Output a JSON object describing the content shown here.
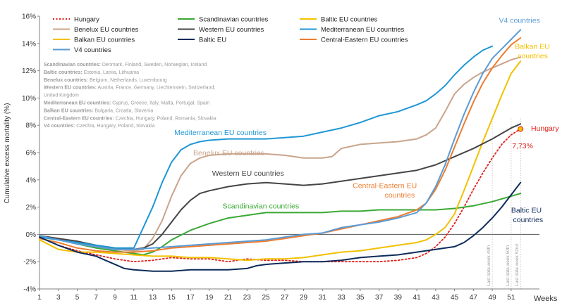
{
  "chart_data": {
    "type": "line",
    "title": "",
    "xlabel": "Weeks",
    "ylabel": "Cumulative excess mortality (%)",
    "xlim": [
      1,
      54
    ],
    "ylim": [
      -4,
      16
    ],
    "x_ticks": [
      1,
      3,
      5,
      7,
      9,
      11,
      13,
      15,
      17,
      19,
      21,
      23,
      25,
      27,
      29,
      31,
      33,
      35,
      37,
      39,
      41,
      43,
      45,
      47,
      49,
      51
    ],
    "y_ticks": [
      {
        "value": -4,
        "label": "-4%"
      },
      {
        "value": -2,
        "label": "-2%"
      },
      {
        "value": 0,
        "label": "0%"
      },
      {
        "value": 2,
        "label": "2%"
      },
      {
        "value": 4,
        "label": "4%"
      },
      {
        "value": 6,
        "label": "6%"
      },
      {
        "value": 8,
        "label": "8%"
      },
      {
        "value": 10,
        "label": "10%"
      },
      {
        "value": 12,
        "label": "12%"
      },
      {
        "value": 14,
        "label": "14%"
      },
      {
        "value": 16,
        "label": "16%"
      }
    ],
    "zero_line": 0,
    "series": [
      {
        "name": "Hungary",
        "color": "#e0201b",
        "dash": "dotted",
        "x": [
          1,
          3,
          5,
          7,
          9,
          11,
          13,
          15,
          17,
          19,
          21,
          23,
          25,
          27,
          29,
          31,
          33,
          35,
          37,
          39,
          41,
          42,
          43,
          44,
          45,
          46,
          47,
          48,
          49,
          50,
          51,
          52
        ],
        "values": [
          -0.2,
          -0.8,
          -1.2,
          -1.5,
          -1.8,
          -2.0,
          -1.9,
          -1.7,
          -1.8,
          -1.8,
          -2.0,
          -1.8,
          -1.9,
          -1.9,
          -2.0,
          -2.0,
          -2.0,
          -2.0,
          -2.0,
          -1.9,
          -1.7,
          -1.4,
          -0.9,
          -0.2,
          0.8,
          2.0,
          3.3,
          4.5,
          5.6,
          6.6,
          7.3,
          7.73
        ]
      },
      {
        "name": "Scandinavian countries",
        "color": "#3aa935",
        "dash": "solid",
        "x": [
          1,
          3,
          5,
          7,
          9,
          11,
          12,
          13,
          14,
          15,
          17,
          19,
          21,
          23,
          25,
          27,
          29,
          31,
          33,
          35,
          37,
          39,
          41,
          43,
          45,
          47,
          49,
          51,
          52
        ],
        "values": [
          -0.1,
          -0.4,
          -0.7,
          -1.0,
          -1.2,
          -1.4,
          -1.5,
          -1.3,
          -0.9,
          -0.4,
          0.3,
          0.8,
          1.2,
          1.4,
          1.6,
          1.6,
          1.6,
          1.6,
          1.7,
          1.7,
          1.8,
          1.8,
          1.8,
          1.8,
          1.9,
          2.1,
          2.4,
          2.8,
          3.0
        ]
      },
      {
        "name": "Baltic EU countries",
        "color": "#f2c100",
        "dash": "solid",
        "x": [
          1,
          3,
          5,
          7,
          9,
          11,
          13,
          15,
          17,
          19,
          21,
          23,
          25,
          27,
          29,
          31,
          33,
          35,
          37,
          39,
          41,
          42,
          43,
          44,
          45,
          46,
          47,
          48,
          49,
          50,
          51,
          52
        ],
        "values": [
          -0.4,
          -1.1,
          -1.3,
          -1.3,
          -1.4,
          -1.5,
          -1.6,
          -1.6,
          -1.7,
          -1.7,
          -1.8,
          -1.9,
          -1.8,
          -1.8,
          -1.7,
          -1.5,
          -1.3,
          -1.2,
          -1.0,
          -0.8,
          -0.6,
          -0.4,
          0.0,
          0.5,
          1.5,
          3.2,
          5.0,
          6.8,
          8.5,
          10.2,
          11.8,
          12.7
        ]
      },
      {
        "name": "Benelux EU countries",
        "color": "#c9a48b",
        "dash": "solid",
        "x": [
          1,
          3,
          5,
          7,
          9,
          11,
          12,
          13,
          14,
          15,
          16,
          17,
          18,
          19,
          21,
          23,
          25,
          27,
          29,
          31,
          32,
          33,
          35,
          37,
          39,
          41,
          42,
          43,
          44,
          45,
          46,
          47,
          48,
          49,
          50,
          51,
          52
        ],
        "values": [
          -0.1,
          -0.3,
          -0.6,
          -0.9,
          -1.1,
          -1.2,
          -1.1,
          -0.3,
          1.0,
          2.8,
          4.3,
          5.2,
          5.6,
          5.8,
          5.9,
          5.9,
          5.9,
          5.8,
          5.6,
          5.6,
          5.7,
          6.3,
          6.6,
          6.7,
          6.8,
          7.0,
          7.3,
          7.8,
          9.0,
          10.3,
          11.0,
          11.5,
          11.9,
          12.2,
          12.5,
          12.8,
          13.0
        ]
      },
      {
        "name": "Western EU countries",
        "color": "#454545",
        "dash": "solid",
        "x": [
          1,
          3,
          5,
          7,
          9,
          11,
          12,
          13,
          14,
          15,
          16,
          17,
          18,
          19,
          21,
          23,
          25,
          27,
          29,
          31,
          33,
          35,
          37,
          39,
          41,
          43,
          45,
          47,
          49,
          51,
          52
        ],
        "values": [
          -0.1,
          -0.3,
          -0.5,
          -0.8,
          -1.0,
          -1.1,
          -1.0,
          -0.7,
          0.0,
          0.9,
          1.8,
          2.5,
          3.0,
          3.2,
          3.5,
          3.7,
          3.8,
          3.7,
          3.6,
          3.7,
          3.9,
          4.1,
          4.3,
          4.5,
          4.7,
          5.1,
          5.7,
          6.3,
          7.0,
          7.8,
          8.1
        ]
      },
      {
        "name": "Mediterranean EU countries",
        "color": "#1f97d4",
        "dash": "solid",
        "x": [
          1,
          3,
          5,
          7,
          9,
          10,
          11,
          12,
          13,
          14,
          15,
          16,
          17,
          18,
          19,
          21,
          23,
          25,
          27,
          29,
          31,
          33,
          35,
          37,
          39,
          41,
          42,
          43,
          44,
          45,
          46,
          47,
          48,
          49
        ],
        "values": [
          -0.2,
          -0.4,
          -0.6,
          -0.8,
          -1.0,
          -1.0,
          -1.0,
          0.5,
          2.0,
          3.8,
          5.3,
          6.2,
          6.6,
          6.8,
          6.9,
          7.0,
          7.0,
          7.0,
          7.1,
          7.2,
          7.5,
          7.8,
          8.2,
          8.7,
          9.0,
          9.5,
          9.8,
          10.3,
          10.9,
          11.7,
          12.4,
          13.0,
          13.5,
          13.8
        ]
      },
      {
        "name": "Balkan EU countries",
        "color": "#f5c000",
        "dash": "solid",
        "x": [],
        "values": []
      },
      {
        "name": "Central-Eastern EU countries",
        "color": "#ed7d31",
        "dash": "solid",
        "x": [
          1,
          3,
          5,
          7,
          9,
          11,
          13,
          15,
          17,
          19,
          21,
          23,
          25,
          27,
          29,
          31,
          33,
          35,
          37,
          39,
          41,
          42,
          43,
          44,
          45,
          46,
          47,
          48,
          49,
          50,
          51,
          52
        ],
        "values": [
          -0.3,
          -0.6,
          -1.0,
          -1.2,
          -1.3,
          -1.3,
          -1.2,
          -1.0,
          -0.9,
          -0.8,
          -0.7,
          -0.6,
          -0.5,
          -0.3,
          -0.1,
          0.1,
          0.4,
          0.7,
          1.0,
          1.3,
          1.8,
          2.3,
          3.3,
          4.7,
          6.4,
          8.1,
          9.7,
          11.1,
          12.2,
          13.1,
          13.9,
          14.4
        ]
      },
      {
        "name": "Baltic EU",
        "color": "#0d2b5a",
        "dash": "solid",
        "x": [
          1,
          3,
          5,
          7,
          8,
          9,
          10,
          11,
          13,
          15,
          17,
          18,
          19,
          21,
          23,
          24,
          25,
          27,
          29,
          31,
          33,
          35,
          37,
          39,
          41,
          43,
          44,
          45,
          46,
          47,
          48,
          49,
          50,
          51,
          52
        ],
        "values": [
          -0.2,
          -0.8,
          -1.3,
          -1.6,
          -1.9,
          -2.2,
          -2.5,
          -2.6,
          -2.7,
          -2.7,
          -2.6,
          -2.6,
          -2.6,
          -2.6,
          -2.5,
          -2.3,
          -2.2,
          -2.1,
          -2.0,
          -2.0,
          -1.9,
          -1.7,
          -1.6,
          -1.5,
          -1.3,
          -1.1,
          -1.0,
          -0.9,
          -0.6,
          -0.1,
          0.5,
          1.2,
          2.0,
          2.9,
          3.8
        ]
      },
      {
        "name": "V4 countries",
        "color": "#5b9bd5",
        "dash": "solid",
        "x": [
          1,
          3,
          5,
          7,
          9,
          11,
          13,
          15,
          17,
          19,
          21,
          23,
          25,
          27,
          29,
          31,
          33,
          35,
          37,
          39,
          41,
          42,
          43,
          44,
          45,
          46,
          47,
          48,
          49,
          50,
          51,
          52
        ],
        "values": [
          -0.1,
          -0.4,
          -0.7,
          -0.9,
          -1.1,
          -1.1,
          -1.0,
          -0.9,
          -0.8,
          -0.7,
          -0.6,
          -0.5,
          -0.4,
          -0.2,
          0.0,
          0.1,
          0.5,
          0.7,
          0.9,
          1.2,
          1.6,
          2.3,
          3.5,
          5.1,
          7.0,
          8.8,
          10.4,
          11.8,
          12.9,
          13.6,
          14.3,
          15.0
        ]
      }
    ],
    "legend": {
      "placement": "top-left",
      "entries": [
        {
          "name": "Hungary",
          "color": "#e0201b",
          "dash": "dotted",
          "row": 0,
          "col": 0
        },
        {
          "name": "Scandinavian countries",
          "color": "#3aa935",
          "dash": "solid",
          "row": 0,
          "col": 1
        },
        {
          "name": "Baltic EU countries",
          "color": "#f2c100",
          "dash": "solid",
          "row": 0,
          "col": 2
        },
        {
          "name": "Benelux EU countries",
          "color": "#c9a48b",
          "dash": "solid",
          "row": 1,
          "col": 0
        },
        {
          "name": "Western EU countries",
          "color": "#454545",
          "dash": "solid",
          "row": 1,
          "col": 1
        },
        {
          "name": "Mediterranean EU countries",
          "color": "#1f97d4",
          "dash": "solid",
          "row": 1,
          "col": 2
        },
        {
          "name": "Balkan EU countries",
          "color": "#f5c000",
          "dash": "solid",
          "row": 2,
          "col": 0
        },
        {
          "name": "Baltic EU",
          "color": "#0d2b5a",
          "dash": "solid",
          "row": 2,
          "col": 1
        },
        {
          "name": "Central-Eastern EU countries",
          "color": "#ed7d31",
          "dash": "solid",
          "row": 2,
          "col": 2
        },
        {
          "name": "V4 countries",
          "color": "#5b9bd5",
          "dash": "solid",
          "row": 3,
          "col": 0
        }
      ]
    },
    "group_definitions": [
      {
        "label": "Scandinavian countries:",
        "members": " Denmark, Finland, Sweden, Norwegian, Iceland"
      },
      {
        "label": "Baltic countries:",
        "members": " Estonia, Latvia, Lithuania"
      },
      {
        "label": "Benelux countries:",
        "members": " Belgium, Netherlands, Luxembourg"
      },
      {
        "label": "Western EU countries:",
        "members": " Austria, France, Germany, Liechtenstein, Switzerland,"
      },
      {
        "label": "",
        "members": "United Kingdom"
      },
      {
        "label": "Mediterranean EU countries:",
        "members": " Cyprus, Greece, Italy, Malta, Portugal, Spain"
      },
      {
        "label": "Balkan EU countries:",
        "members": " Bulgaria, Croatia, Slovenia"
      },
      {
        "label": "Central-Eastern EU countries:",
        "members": " Czechia, Hungary, Poland, Romania, Slovakia"
      },
      {
        "label": "V4 countries:",
        "members": " Czechia, Hungary, Poland, Slovakia"
      }
    ],
    "annotations": [
      {
        "text": "Mediterranean EU countries",
        "color": "#1f97d4",
        "at_x": 15.3,
        "at_y": 7.3
      },
      {
        "text": "Benelux EU countries",
        "color": "#c9a48b",
        "at_x": 17.3,
        "at_y": 5.8
      },
      {
        "text": "Western EU countries",
        "color": "#454545",
        "at_x": 19.3,
        "at_y": 4.3
      },
      {
        "text": "Scandinavian countries",
        "color": "#3aa935",
        "at_x": 20.4,
        "at_y": 1.9
      },
      {
        "text": "Central-Eastern EU",
        "color": "#ed7d31",
        "at_x": 34.2,
        "at_y": 3.4
      },
      {
        "text": "countries",
        "color": "#ed7d31",
        "at_x": 37.6,
        "at_y": 2.7
      },
      {
        "text": "V4 countries",
        "color": "#5b9bd5",
        "at_x": 49.7,
        "at_y": 15.5
      },
      {
        "text": "Balkan EU",
        "color": "#f5c000",
        "at_x": 51.4,
        "at_y": 13.6
      },
      {
        "text": "countries",
        "color": "#f5c000",
        "at_x": 51.7,
        "at_y": 12.9
      },
      {
        "text": "Hungary",
        "color": "#e0201b",
        "at_x": 53.1,
        "at_y": 7.6
      },
      {
        "text": "7,73%",
        "color": "#e0201b",
        "at_x": 51.1,
        "at_y": 6.3
      },
      {
        "text": "Baltic EU",
        "color": "#0d2b5a",
        "at_x": 51.0,
        "at_y": 1.6
      },
      {
        "text": "countries",
        "color": "#0d2b5a",
        "at_x": 51.2,
        "at_y": 0.9
      }
    ],
    "highlight_point": {
      "series": "Hungary",
      "x": 52,
      "y": 7.73,
      "color": "#f5c000"
    },
    "reference_lines": [
      {
        "x": 49,
        "label": "Last data week 49th"
      },
      {
        "x": 51,
        "label": "Last data week 50th"
      },
      {
        "x": 52,
        "label": "Last data week 52nd"
      }
    ],
    "grid": false
  }
}
